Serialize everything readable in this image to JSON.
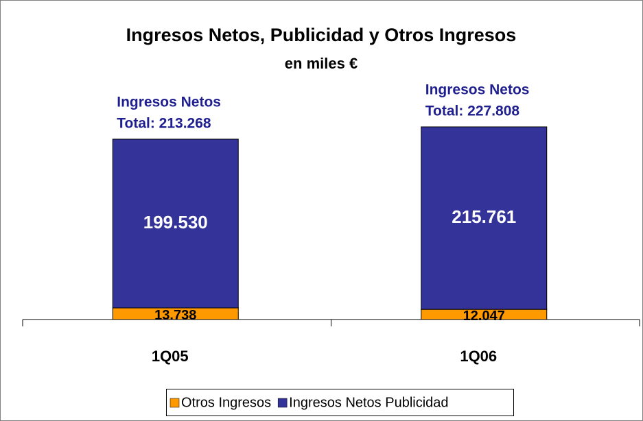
{
  "chart_data": {
    "type": "stacked_bar",
    "title": "Ingresos Netos,  Publicidad y Otros Ingresos",
    "subtitle": "en miles €",
    "categories": [
      "1Q05",
      "1Q06"
    ],
    "series": [
      {
        "name": "Otros Ingresos",
        "color": "#ff9900",
        "values": [
          13738,
          12047
        ],
        "value_labels": [
          "13.738",
          "12.047"
        ]
      },
      {
        "name": "Ingresos Netos Publicidad",
        "color": "#333399",
        "values": [
          199530,
          215761
        ],
        "value_labels": [
          "199.530",
          "215.761"
        ]
      }
    ],
    "annotations": [
      [
        "Ingresos Netos",
        "Total: 213.268"
      ],
      [
        "Ingresos Netos",
        "Total: 227.808"
      ]
    ],
    "legend": "bottom"
  }
}
